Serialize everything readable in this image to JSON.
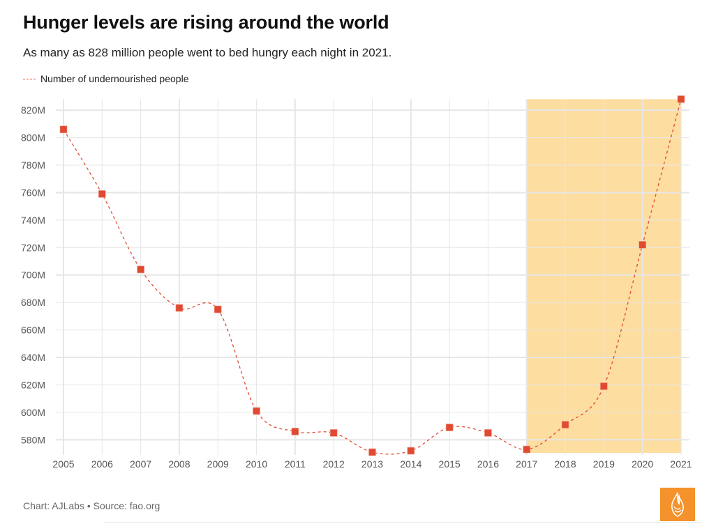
{
  "header": {
    "title": "Hunger levels are rising around the world",
    "subtitle": "As many as 828 million people went to bed hungry each night in 2021."
  },
  "footer": {
    "credit": "Chart: AJLabs • Source: fao.org",
    "logo_icon": "al-jazeera-logo-icon"
  },
  "colors": {
    "series": "#e04a31",
    "highlight": "#fddda0",
    "grid": "#e6e6e6",
    "logo": "#f4922b"
  },
  "chart_data": {
    "type": "line",
    "title": "Hunger levels are rising around the world",
    "subtitle": "As many as 828 million people went to bed hungry each night in 2021.",
    "xlabel": "",
    "ylabel": "",
    "x": [
      2005,
      2006,
      2007,
      2008,
      2009,
      2010,
      2011,
      2012,
      2013,
      2014,
      2015,
      2016,
      2017,
      2018,
      2019,
      2020,
      2021
    ],
    "series": [
      {
        "name": "Number of undernourished people",
        "unit": "million",
        "style": "dashed line with square markers",
        "values": [
          806,
          759,
          704,
          676,
          675,
          601,
          586,
          585,
          571,
          572,
          589,
          585,
          573,
          591,
          619,
          722,
          828
        ]
      }
    ],
    "legend": {
      "position": "top-left",
      "entries": [
        "Number of undernourished people"
      ]
    },
    "xticks": [
      "2005",
      "2006",
      "2007",
      "2008",
      "2009",
      "2010",
      "2011",
      "2012",
      "2013",
      "2014",
      "2015",
      "2016",
      "2017",
      "2018",
      "2019",
      "2020",
      "2021"
    ],
    "yticks": [
      580,
      600,
      620,
      640,
      660,
      680,
      700,
      720,
      740,
      760,
      780,
      800,
      820
    ],
    "ytick_labels": [
      "580M",
      "600M",
      "620M",
      "640M",
      "660M",
      "680M",
      "700M",
      "720M",
      "740M",
      "760M",
      "780M",
      "800M",
      "820M"
    ],
    "xlim": [
      2005,
      2021
    ],
    "ylim": [
      570.5,
      828
    ],
    "grid": true,
    "highlight_band": {
      "x_start": 2017,
      "x_end": 2021,
      "color": "#fddda0"
    }
  }
}
